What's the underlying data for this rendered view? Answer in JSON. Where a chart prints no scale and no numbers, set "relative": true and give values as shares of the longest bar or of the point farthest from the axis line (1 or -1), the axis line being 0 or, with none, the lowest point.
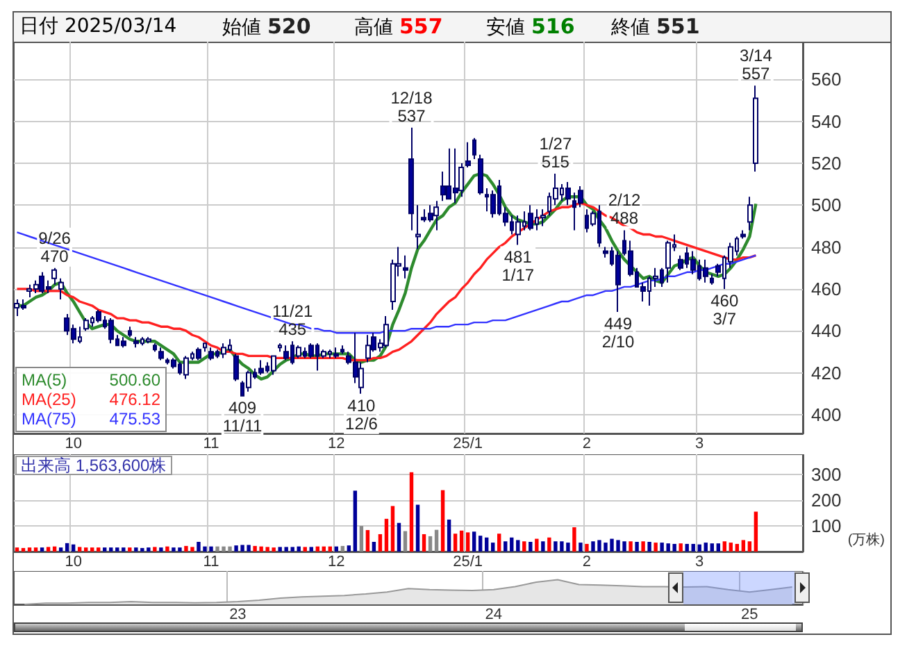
{
  "chart_data": [
    {
      "type": "candlestick",
      "title": "日付 2025/03/14",
      "grid": true,
      "annotations": [
        "始値 520",
        "高値 557",
        "安値 516",
        "終値 551",
        {
          "text": "9/26\n470",
          "y": 470
        },
        {
          "text": "409\n11/11",
          "y": 409
        },
        {
          "text": "11/21\n435",
          "y": 435
        },
        {
          "text": "410\n12/6",
          "y": 410
        },
        {
          "text": "12/18\n537",
          "y": 537
        },
        {
          "text": "481\n1/17",
          "y": 481
        },
        {
          "text": "1/27\n515",
          "y": 515
        },
        {
          "text": "449\n2/10",
          "y": 449
        },
        {
          "text": "2/12\n488",
          "y": 488
        },
        {
          "text": "460\n3/7",
          "y": 460
        },
        {
          "text": "3/14\n557",
          "y": 557
        }
      ],
      "categories": [
        null,
        null,
        null,
        null,
        null,
        null,
        null,
        null,
        null,
        "10",
        null,
        null,
        null,
        null,
        null,
        null,
        null,
        null,
        null,
        null,
        null,
        null,
        null,
        null,
        null,
        null,
        null,
        null,
        null,
        null,
        null,
        "11",
        null,
        null,
        null,
        null,
        null,
        null,
        null,
        null,
        null,
        null,
        null,
        null,
        null,
        null,
        null,
        null,
        null,
        null,
        null,
        "12",
        null,
        null,
        null,
        null,
        null,
        null,
        null,
        null,
        null,
        null,
        null,
        null,
        null,
        null,
        null,
        null,
        null,
        null,
        null,
        null,
        "25/1",
        null,
        null,
        null,
        null,
        null,
        null,
        null,
        null,
        null,
        null,
        null,
        null,
        null,
        null,
        null,
        null,
        null,
        null,
        "2",
        null,
        null,
        null,
        null,
        null,
        null,
        null,
        null,
        null,
        null,
        null,
        null,
        null,
        null,
        null,
        null,
        null,
        "3",
        null,
        null,
        null,
        null,
        null,
        null,
        null,
        null,
        null
      ],
      "colors": [
        "#ffffff",
        "#000099",
        "#ffffff",
        "#ffffff",
        "#000099",
        "#000099",
        "#ffffff",
        "#ffffff",
        "#000099",
        "#000099",
        "#ffffff",
        "#ffffff",
        "#ffffff",
        "#000099",
        "#000099",
        "#000099",
        "#000099",
        "#000099",
        "#000099",
        "#000099",
        "#ffffff",
        "#ffffff",
        "#000099",
        "#000099",
        "#000099",
        "#000099",
        "#000099",
        "#ffffff",
        "#ffffff",
        "#000099",
        "#ffffff",
        "#000099",
        "#000099",
        "#ffffff",
        "#ffffff",
        "#000099",
        "#000099",
        "#ffffff",
        "#000099",
        "#000099",
        "#000099",
        "#ffffff",
        "#ffffff",
        "#000099",
        "#000099",
        "#ffffff",
        "#000099",
        "#000099",
        "#000099",
        "#ffffff",
        "#ffffff",
        "#000099",
        "#000099",
        "#000099",
        "#000099",
        "#ffffff",
        "#ffffff",
        "#000099",
        "#ffffff",
        "#ffffff",
        "#ffffff",
        "#ffffff",
        "#000099",
        "#000099",
        "#ffffff",
        "#000099",
        "#000099",
        "#ffffff",
        "#000099",
        "#000099",
        "#000099",
        "#ffffff",
        "#000099",
        "#000099",
        "#000099",
        "#000099",
        "#000099",
        "#000099",
        "#000099",
        "#000099",
        "#ffffff",
        "#ffffff",
        "#000099",
        "#ffffff",
        "#ffffff",
        "#ffffff",
        "#ffffff",
        "#ffffff",
        "#000099",
        "#000099",
        "#000099",
        "#000099",
        "#ffffff",
        "#000099",
        "#000099",
        "#000099",
        "#000099",
        "#000099",
        "#000099",
        "#000099",
        "#000099",
        "#ffffff",
        "#ffffff",
        "#000099",
        "#ffffff",
        "#ffffff",
        "#000099",
        "#000099",
        "#000099",
        "#000099",
        "#000099",
        "#000099",
        "#000099",
        "#ffffff",
        "#ffffff",
        "#ffffff",
        "#000099",
        "#ffffff",
        "#ffffff"
      ],
      "ohlc": [
        [
          451,
          455,
          447,
          453
        ],
        [
          452,
          455,
          450,
          451
        ],
        [
          459,
          462,
          456,
          460
        ],
        [
          460,
          464,
          458,
          462
        ],
        [
          466,
          468,
          458,
          459
        ],
        [
          461,
          464,
          458,
          460
        ],
        [
          465,
          470,
          462,
          469
        ],
        [
          460,
          465,
          455,
          463
        ],
        [
          446,
          448,
          438,
          440
        ],
        [
          441,
          443,
          434,
          436
        ],
        [
          435,
          442,
          434,
          437
        ],
        [
          441,
          446,
          440,
          445
        ],
        [
          444,
          447,
          442,
          446
        ],
        [
          449,
          450,
          444,
          445
        ],
        [
          445,
          447,
          441,
          442
        ],
        [
          445,
          446,
          434,
          436
        ],
        [
          436,
          438,
          433,
          433
        ],
        [
          435,
          437,
          432,
          433
        ],
        [
          440,
          442,
          437,
          438
        ],
        [
          435,
          437,
          432,
          434
        ],
        [
          434,
          437,
          433,
          436
        ],
        [
          435,
          437,
          434,
          436
        ],
        [
          433,
          434,
          430,
          431
        ],
        [
          430,
          432,
          426,
          427
        ],
        [
          426,
          427,
          424,
          425
        ],
        [
          426,
          427,
          422,
          423
        ],
        [
          424,
          425,
          419,
          420
        ],
        [
          419,
          428,
          417,
          427
        ],
        [
          427,
          430,
          426,
          429
        ],
        [
          431,
          432,
          426,
          427
        ],
        [
          432,
          434,
          430,
          434
        ],
        [
          430,
          432,
          426,
          427
        ],
        [
          430,
          431,
          427,
          428
        ],
        [
          429,
          434,
          427,
          432
        ],
        [
          431,
          436,
          430,
          433
        ],
        [
          428,
          429,
          416,
          417
        ],
        [
          415,
          416,
          409,
          409
        ],
        [
          413,
          421,
          411,
          420
        ],
        [
          420,
          422,
          417,
          418
        ],
        [
          422,
          426,
          419,
          420
        ],
        [
          423,
          425,
          420,
          421
        ],
        [
          421,
          428,
          419,
          428
        ],
        [
          432,
          434,
          430,
          433
        ],
        [
          430,
          433,
          426,
          427
        ],
        [
          433,
          435,
          424,
          425
        ],
        [
          428,
          433,
          427,
          432
        ],
        [
          430,
          432,
          427,
          428
        ],
        [
          433,
          434,
          427,
          428
        ],
        [
          433,
          434,
          421,
          428
        ],
        [
          428,
          431,
          427,
          430
        ],
        [
          429,
          431,
          427,
          430
        ],
        [
          429,
          432,
          427,
          428
        ],
        [
          431,
          433,
          429,
          430
        ],
        [
          428,
          430,
          424,
          425
        ],
        [
          425,
          439,
          415,
          418
        ],
        [
          413,
          425,
          410,
          422
        ],
        [
          427,
          438,
          425,
          433
        ],
        [
          437,
          439,
          430,
          431
        ],
        [
          432,
          436,
          430,
          434
        ],
        [
          433,
          447,
          432,
          443
        ],
        [
          454,
          474,
          450,
          472
        ],
        [
          471,
          480,
          466,
          472
        ],
        [
          470,
          476,
          465,
          469
        ],
        [
          522,
          537,
          488,
          496
        ],
        [
          485,
          500,
          479,
          486
        ],
        [
          494,
          498,
          492,
          493
        ],
        [
          496,
          500,
          492,
          493
        ],
        [
          495,
          502,
          488,
          499
        ],
        [
          509,
          516,
          502,
          505
        ],
        [
          509,
          527,
          503,
          503
        ],
        [
          508,
          527,
          501,
          506
        ],
        [
          507,
          520,
          504,
          518
        ],
        [
          521,
          530,
          518,
          519
        ],
        [
          531,
          532,
          522,
          524
        ],
        [
          522,
          524,
          505,
          506
        ],
        [
          505,
          508,
          497,
          504
        ],
        [
          505,
          507,
          494,
          496
        ],
        [
          509,
          512,
          495,
          496
        ],
        [
          496,
          499,
          490,
          492
        ],
        [
          492,
          495,
          486,
          488
        ],
        [
          486,
          495,
          481,
          492
        ],
        [
          490,
          497,
          488,
          492
        ],
        [
          496,
          500,
          488,
          489
        ],
        [
          491,
          498,
          488,
          494
        ],
        [
          494,
          498,
          490,
          495
        ],
        [
          497,
          506,
          495,
          504
        ],
        [
          503,
          515,
          500,
          508
        ],
        [
          505,
          510,
          502,
          508
        ],
        [
          508,
          511,
          500,
          503
        ],
        [
          502,
          506,
          488,
          499
        ],
        [
          507,
          509,
          499,
          501
        ],
        [
          495,
          498,
          487,
          489
        ],
        [
          491,
          497,
          490,
          496
        ],
        [
          497,
          500,
          480,
          482
        ],
        [
          478,
          480,
          475,
          477
        ],
        [
          478,
          480,
          471,
          472
        ],
        [
          476,
          478,
          449,
          462
        ],
        [
          483,
          488,
          476,
          477
        ],
        [
          478,
          483,
          466,
          467
        ],
        [
          468,
          470,
          461,
          461
        ],
        [
          461,
          463,
          454,
          459
        ],
        [
          459,
          466,
          452,
          465
        ],
        [
          465,
          470,
          461,
          466
        ],
        [
          469,
          470,
          461,
          463
        ],
        [
          470,
          483,
          463,
          482
        ],
        [
          480,
          486,
          478,
          481
        ],
        [
          474,
          476,
          469,
          470
        ],
        [
          477,
          480,
          470,
          472
        ],
        [
          474,
          478,
          467,
          469
        ],
        [
          471,
          474,
          464,
          465
        ],
        [
          470,
          474,
          463,
          466
        ],
        [
          465,
          467,
          462,
          463
        ],
        [
          471,
          472,
          466,
          468
        ],
        [
          465,
          476,
          460,
          475
        ],
        [
          473,
          482,
          470,
          480
        ],
        [
          478,
          485,
          476,
          484
        ],
        [
          486,
          488,
          484,
          485
        ],
        [
          492,
          504,
          488,
          500
        ],
        [
          520,
          557,
          516,
          551
        ]
      ],
      "series": [
        {
          "type": "line",
          "name": "MA(5) 500.60",
          "color": "#2e8b2e",
          "values": [
            452,
            452,
            454,
            456,
            457,
            459,
            462,
            463,
            458,
            454,
            449,
            444,
            441,
            442,
            443,
            443,
            440,
            438,
            436,
            435,
            435,
            435,
            435,
            433,
            431,
            429,
            425,
            425,
            425,
            425,
            427,
            429,
            429,
            430,
            431,
            427,
            424,
            422,
            419,
            417,
            418,
            421,
            424,
            426,
            427,
            429,
            429,
            428,
            428,
            429,
            429,
            429,
            429,
            429,
            426,
            425,
            426,
            426,
            428,
            433,
            443,
            450,
            458,
            470,
            479,
            483,
            488,
            493,
            495,
            499,
            501,
            506,
            510,
            514,
            515,
            514,
            510,
            505,
            499,
            495,
            493,
            492,
            491,
            491,
            492,
            495,
            498,
            502,
            504,
            504,
            504,
            500,
            498,
            493,
            489,
            483,
            478,
            474,
            471,
            468,
            465,
            466,
            464,
            463,
            467,
            471,
            472,
            474,
            475,
            471,
            468,
            467,
            466,
            467,
            470,
            474,
            479,
            485,
            500.6
          ]
        },
        {
          "type": "line",
          "name": "MA(25) 476.12",
          "color": "#ff2020",
          "values": [
            460,
            460,
            460,
            459,
            459,
            459,
            459,
            459,
            457,
            456,
            454,
            453,
            452,
            450,
            449,
            448,
            446,
            446,
            445,
            445,
            444,
            444,
            443,
            442,
            442,
            441,
            441,
            440,
            438,
            437,
            435,
            433,
            432,
            430,
            430,
            429,
            429,
            428,
            428,
            428,
            428,
            427,
            427,
            427,
            427,
            427,
            427,
            427,
            427,
            427,
            427,
            427,
            427,
            426,
            426,
            426,
            426,
            427,
            427,
            428,
            430,
            431,
            433,
            435,
            438,
            441,
            444,
            448,
            451,
            454,
            456,
            460,
            463,
            467,
            470,
            474,
            477,
            480,
            482,
            485,
            487,
            489,
            491,
            493,
            495,
            497,
            498,
            499,
            499,
            500,
            501,
            500,
            499,
            497,
            495,
            494,
            492,
            490,
            489,
            487,
            486,
            486,
            485,
            485,
            484,
            483,
            482,
            481,
            480,
            479,
            478,
            477,
            476,
            475,
            474,
            474,
            475,
            475,
            476
          ]
        },
        {
          "type": "line",
          "name": "MA(75) 475.53",
          "color": "#3333ff",
          "values": [
            487,
            486,
            485,
            484,
            483,
            482,
            481,
            480,
            479,
            478,
            477,
            476,
            475,
            474,
            473,
            472,
            471,
            470,
            469,
            468,
            467,
            466,
            465,
            464,
            463,
            462,
            461,
            460,
            459,
            458,
            457,
            456,
            455,
            454,
            453,
            452,
            451,
            450,
            449,
            448,
            447,
            446,
            445,
            444,
            443,
            443,
            442,
            441,
            441,
            440,
            440,
            439,
            439,
            439,
            439,
            439,
            439,
            439,
            439,
            440,
            440,
            440,
            440,
            441,
            441,
            441,
            441,
            442,
            442,
            442,
            443,
            443,
            443,
            444,
            444,
            444,
            445,
            445,
            445,
            446,
            447,
            448,
            449,
            450,
            451,
            452,
            453,
            454,
            454,
            455,
            456,
            457,
            457,
            458,
            459,
            459,
            460,
            461,
            461,
            462,
            463,
            464,
            464,
            465,
            466,
            466,
            467,
            468,
            468,
            469,
            469,
            470,
            471,
            472,
            472,
            473,
            474,
            475,
            476
          ]
        }
      ],
      "ylim": [
        391,
        578
      ],
      "yticks": [
        400,
        420,
        440,
        460,
        480,
        500,
        520,
        540,
        560
      ]
    },
    {
      "type": "bar",
      "title": "出来高 1,563,600株",
      "ylabel": "(万株)",
      "grid": true,
      "categories": [
        null,
        null,
        null,
        null,
        null,
        null,
        null,
        null,
        null,
        "10",
        null,
        null,
        null,
        null,
        null,
        null,
        null,
        null,
        null,
        null,
        null,
        null,
        null,
        null,
        null,
        null,
        null,
        null,
        null,
        null,
        null,
        "11",
        null,
        null,
        null,
        null,
        null,
        null,
        null,
        null,
        null,
        null,
        null,
        null,
        null,
        null,
        null,
        null,
        null,
        null,
        null,
        "12",
        null,
        null,
        null,
        null,
        null,
        null,
        null,
        null,
        null,
        null,
        null,
        null,
        null,
        null,
        null,
        null,
        null,
        null,
        null,
        null,
        "25/1",
        null,
        null,
        null,
        null,
        null,
        null,
        null,
        null,
        null,
        null,
        null,
        null,
        null,
        null,
        null,
        null,
        null,
        null,
        "2",
        null,
        null,
        null,
        null,
        null,
        null,
        null,
        null,
        null,
        null,
        null,
        null,
        null,
        null,
        null,
        null,
        null,
        "3",
        null,
        null,
        null,
        null,
        null,
        null,
        null,
        null,
        null
      ],
      "values": [
        16,
        14,
        16,
        16,
        16,
        18,
        20,
        16,
        33,
        28,
        18,
        16,
        16,
        16,
        16,
        16,
        16,
        16,
        16,
        16,
        14,
        16,
        18,
        16,
        20,
        16,
        16,
        22,
        18,
        38,
        20,
        20,
        20,
        20,
        20,
        24,
        26,
        26,
        22,
        20,
        18,
        16,
        18,
        18,
        18,
        20,
        18,
        18,
        20,
        20,
        20,
        20,
        22,
        24,
        238,
        100,
        84,
        38,
        68,
        128,
        178,
        112,
        80,
        310,
        183,
        68,
        60,
        85,
        240,
        125,
        70,
        82,
        75,
        78,
        62,
        55,
        35,
        70,
        40,
        55,
        45,
        40,
        38,
        50,
        40,
        55,
        40,
        40,
        35,
        95,
        35,
        30,
        40,
        45,
        35,
        50,
        45,
        40,
        40,
        38,
        40,
        38,
        35,
        35,
        32,
        30,
        32,
        30,
        30,
        28,
        35,
        32,
        32,
        40,
        35,
        30,
        45,
        40,
        156
      ],
      "colors": [
        "#ff0000",
        "#ff0000",
        "#ff0000",
        "#ff0000",
        "#000099",
        "#ff0000",
        "#ff0000",
        "#000099",
        "#000099",
        "#000099",
        "#ff0000",
        "#ff0000",
        "#ff0000",
        "#ff0000",
        "#000099",
        "#000099",
        "#000099",
        "#000099",
        "#ff0000",
        "#000099",
        "#000099",
        "#000099",
        "#ff0000",
        "#000099",
        "#ff0000",
        "#000099",
        "#000099",
        "#ff0000",
        "#ff0000",
        "#000099",
        "#000099",
        "#000099",
        "#888888",
        "#888888",
        "#888888",
        "#000099",
        "#000099",
        "#000099",
        "#ff0000",
        "#ff0000",
        "#ff0000",
        "#ff0000",
        "#000099",
        "#000099",
        "#000099",
        "#000099",
        "#ff0000",
        "#000099",
        "#ff0000",
        "#ff0000",
        "#ff0000",
        "#000099",
        "#888888",
        "#000099",
        "#000099",
        "#888888",
        "#ff0000",
        "#000099",
        "#ff0000",
        "#ff0000",
        "#ff0000",
        "#000099",
        "#888888",
        "#ff0000",
        "#000099",
        "#ff0000",
        "#888888",
        "#888888",
        "#ff0000",
        "#000099",
        "#ff0000",
        "#ff0000",
        "#ff0000",
        "#000099",
        "#000099",
        "#000099",
        "#000099",
        "#ff0000",
        "#000099",
        "#000099",
        "#000099",
        "#ff0000",
        "#000099",
        "#ff0000",
        "#000099",
        "#ff0000",
        "#000099",
        "#000099",
        "#000099",
        "#ff0000",
        "#000099",
        "#ff0000",
        "#000099",
        "#000099",
        "#000099",
        "#000099",
        "#000099",
        "#000099",
        "#ff0000",
        "#000099",
        "#ff0000",
        "#000099",
        "#ff0000",
        "#000099",
        "#000099",
        "#000099",
        "#ff0000",
        "#000099",
        "#000099",
        "#000099",
        "#000099",
        "#000099",
        "#000099",
        "#ff0000",
        "#ff0000",
        "#ff0000",
        "#ff0000",
        "#ff0000",
        "#ff0000"
      ],
      "ylim": [
        0,
        380
      ],
      "yticks": [
        100,
        200,
        300
      ]
    },
    {
      "type": "line",
      "relative": true,
      "color": "#999999",
      "categories": [
        null,
        null,
        null,
        null,
        null,
        null,
        null,
        null,
        null,
        null,
        "23",
        null,
        null,
        null,
        null,
        null,
        null,
        null,
        null,
        null,
        null,
        null,
        "24",
        null,
        null,
        null,
        null,
        null,
        null,
        null,
        null,
        null,
        null,
        null,
        "25",
        null,
        null
      ],
      "values": [
        0,
        0.05,
        0.05,
        0.08,
        0.08,
        0.11,
        0.08,
        0.08,
        0.06,
        0.08,
        0.11,
        0.17,
        0.25,
        0.3,
        0.33,
        0.36,
        0.42,
        0.5,
        0.64,
        0.6,
        0.58,
        0.56,
        0.6,
        0.72,
        0.9,
        1,
        0.8,
        0.78,
        0.75,
        0.72,
        0.72,
        0.7,
        0.72,
        0.6,
        0.5,
        0.6,
        0.7
      ]
    }
  ]
}
